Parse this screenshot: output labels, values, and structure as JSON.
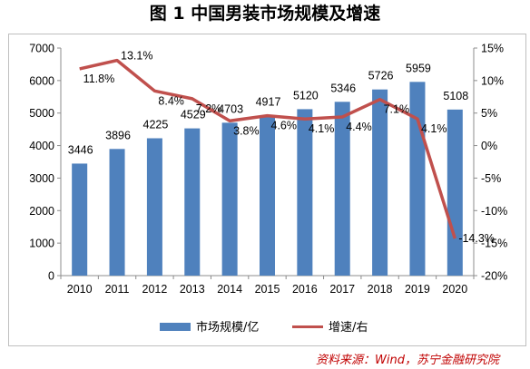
{
  "title": "图 1  中国男装市场规模及增速",
  "source": "资料来源：Wind，苏宁金融研究院",
  "chart_data": {
    "type": "bar",
    "categories": [
      "2010",
      "2011",
      "2012",
      "2013",
      "2014",
      "2015",
      "2016",
      "2017",
      "2018",
      "2019",
      "2020"
    ],
    "series": [
      {
        "name": "市场规模/亿",
        "type": "bar",
        "axis": "left",
        "color": "#4f81bd",
        "values": [
          3446,
          3896,
          4225,
          4529,
          4703,
          4917,
          5120,
          5346,
          5726,
          5959,
          5108
        ],
        "labels": [
          "3446",
          "3896",
          "4225",
          "4529",
          "4703",
          "4917",
          "5120",
          "5346",
          "5726",
          "5959",
          "5108"
        ]
      },
      {
        "name": "增速/右",
        "type": "line",
        "axis": "right",
        "color": "#c0504d",
        "values": [
          11.8,
          13.1,
          8.4,
          7.2,
          3.8,
          4.6,
          4.1,
          4.4,
          7.1,
          4.1,
          -14.3
        ],
        "labels": [
          "11.8%",
          "13.1%",
          "8.4%",
          "7.2%",
          "3.8%",
          "4.6%",
          "4.1%",
          "4.4%",
          "7.1%",
          "4.1%",
          "-14.3%"
        ]
      }
    ],
    "y_left": {
      "min": 0,
      "max": 7000,
      "step": 1000,
      "ticks": [
        "0",
        "1000",
        "2000",
        "3000",
        "4000",
        "5000",
        "6000",
        "7000"
      ]
    },
    "y_right": {
      "min": -20,
      "max": 15,
      "step": 5,
      "ticks": [
        "-20%",
        "-15%",
        "-10%",
        "-5%",
        "0%",
        "5%",
        "10%",
        "15%"
      ]
    },
    "grid": false,
    "legend_position": "bottom"
  }
}
